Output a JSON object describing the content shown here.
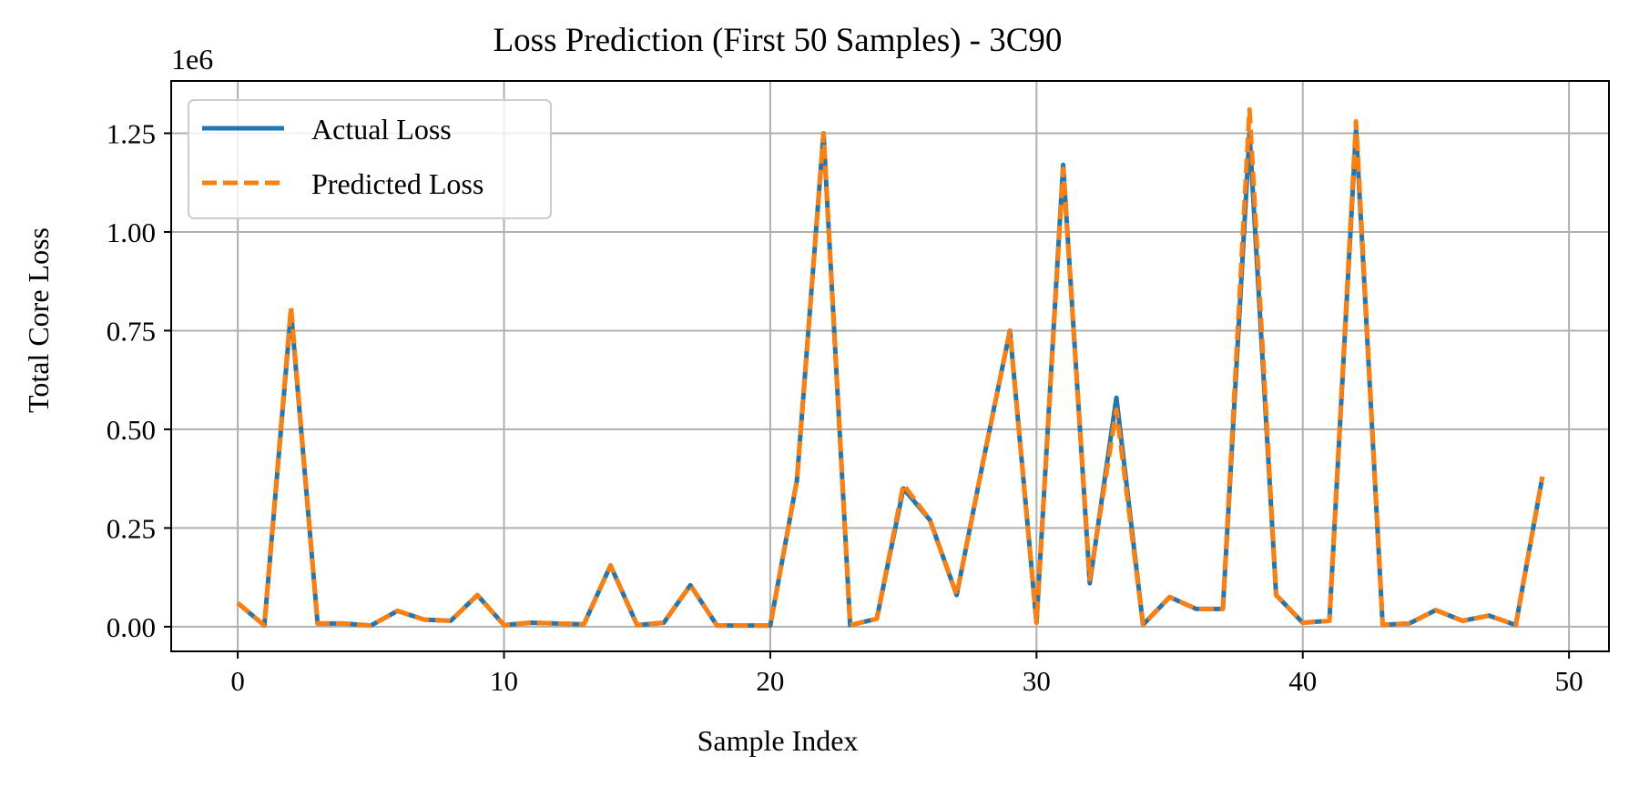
{
  "chart_data": {
    "type": "line",
    "title": "Loss Prediction (First 50 Samples) - 3C90",
    "xlabel": "Sample Index",
    "ylabel": "Total Core Loss",
    "y_offset_label": "1e6",
    "xlim": [
      -2.5,
      51.5
    ],
    "ylim": [
      -0.0625,
      1.3825
    ],
    "x_ticks": [
      0,
      10,
      20,
      30,
      40,
      50
    ],
    "x_tick_labels": [
      "0",
      "10",
      "20",
      "30",
      "40",
      "50"
    ],
    "y_ticks": [
      0,
      0.25,
      0.5,
      0.75,
      1.0,
      1.25
    ],
    "y_tick_labels": [
      "0.00",
      "0.25",
      "0.50",
      "0.75",
      "1.00",
      "1.25"
    ],
    "grid": true,
    "legend_position": "top-left",
    "x": [
      0,
      1,
      2,
      3,
      4,
      5,
      6,
      7,
      8,
      9,
      10,
      11,
      12,
      13,
      14,
      15,
      16,
      17,
      18,
      19,
      20,
      21,
      22,
      23,
      24,
      25,
      26,
      27,
      28,
      29,
      30,
      31,
      32,
      33,
      34,
      35,
      36,
      37,
      38,
      39,
      40,
      41,
      42,
      43,
      44,
      45,
      46,
      47,
      48,
      49
    ],
    "series": [
      {
        "name": "Actual Loss",
        "color": "#1f77b4",
        "style": "solid",
        "values": [
          0.06,
          0.003,
          0.8,
          0.008,
          0.008,
          0.003,
          0.04,
          0.018,
          0.015,
          0.08,
          0.004,
          0.01,
          0.008,
          0.006,
          0.155,
          0.004,
          0.01,
          0.105,
          0.003,
          0.003,
          0.003,
          0.37,
          1.25,
          0.004,
          0.02,
          0.35,
          0.27,
          0.08,
          0.42,
          0.75,
          0.01,
          1.17,
          0.11,
          0.58,
          0.005,
          0.075,
          0.045,
          0.045,
          1.25,
          0.08,
          0.01,
          0.015,
          1.26,
          0.005,
          0.008,
          0.042,
          0.015,
          0.028,
          0.004,
          0.38
        ]
      },
      {
        "name": "Predicted Loss",
        "color": "#ff7f0e",
        "style": "dashed",
        "values": [
          0.06,
          0.003,
          0.81,
          0.008,
          0.008,
          0.003,
          0.04,
          0.018,
          0.015,
          0.08,
          0.004,
          0.01,
          0.008,
          0.006,
          0.155,
          0.004,
          0.01,
          0.105,
          0.003,
          0.003,
          0.003,
          0.37,
          1.25,
          0.004,
          0.02,
          0.36,
          0.27,
          0.08,
          0.42,
          0.75,
          0.01,
          1.16,
          0.12,
          0.55,
          0.005,
          0.075,
          0.045,
          0.045,
          1.31,
          0.08,
          0.01,
          0.015,
          1.28,
          0.005,
          0.008,
          0.042,
          0.015,
          0.028,
          0.004,
          0.38
        ]
      }
    ]
  }
}
